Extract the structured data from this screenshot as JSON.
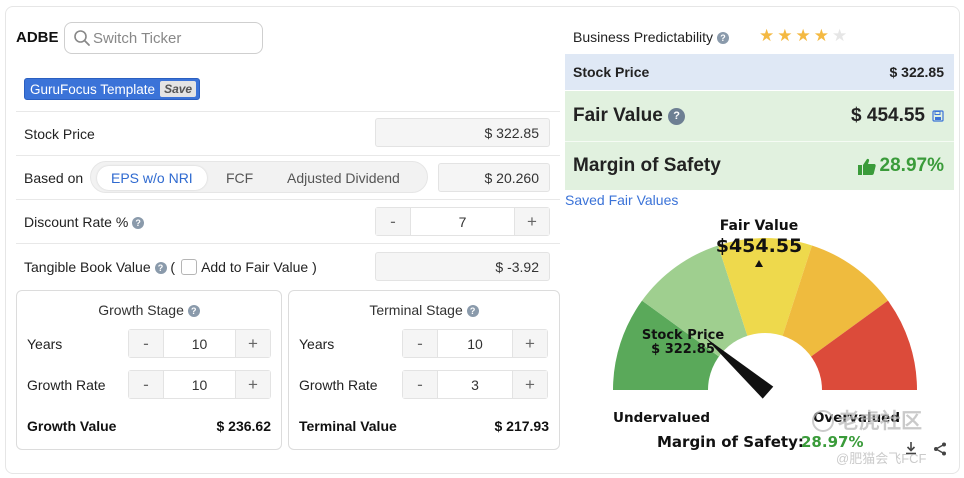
{
  "ticker": "ADBE",
  "search": {
    "placeholder": "Switch Ticker"
  },
  "template": {
    "label": "GuruFocus Template",
    "save_label": "Save"
  },
  "stock_price_row": {
    "label": "Stock Price",
    "value": "$ 322.85"
  },
  "based_on": {
    "label": "Based on",
    "options": [
      "EPS w/o NRI",
      "FCF",
      "Adjusted Dividend"
    ],
    "selected": "EPS w/o NRI",
    "value": "$ 20.260"
  },
  "discount_rate": {
    "label": "Discount Rate %",
    "value": "7"
  },
  "tangible_book": {
    "label": "Tangible Book Value",
    "open_paren": "(",
    "checkbox_label": "Add to Fair Value",
    "close_paren": ")",
    "value": "$ -3.92"
  },
  "growth_stage": {
    "title": "Growth Stage",
    "years_label": "Years",
    "years": "10",
    "rate_label": "Growth Rate",
    "rate": "10",
    "value_label": "Growth Value",
    "value": "$ 236.62"
  },
  "terminal_stage": {
    "title": "Terminal Stage",
    "years_label": "Years",
    "years": "10",
    "rate_label": "Growth Rate",
    "rate": "3",
    "value_label": "Terminal Value",
    "value": "$ 217.93"
  },
  "stepper": {
    "minus": "-",
    "plus": "+"
  },
  "right": {
    "predictability_label": "Business Predictability",
    "predictability_stars": 4,
    "predictability_max": 5,
    "stock_price_label": "Stock Price",
    "stock_price": "$ 322.85",
    "fair_value_label": "Fair Value",
    "fair_value": "$ 454.55",
    "margin_label": "Margin of Safety",
    "margin": "28.97%",
    "saved_link": "Saved Fair Values"
  },
  "gauge": {
    "fair_value_title": "Fair Value",
    "fair_value": "$454.55",
    "stock_price_title": "Stock Price",
    "stock_price": "$ 322.85",
    "undervalued": "Undervalued",
    "overvalued": "Overvalued",
    "margin_label": "Margin of Safety:",
    "margin_value": "28.97%",
    "colors": [
      "#5aa95a",
      "#9fcf8f",
      "#eed94c",
      "#efbb3e",
      "#dc4b3a"
    ]
  },
  "watermark": {
    "line1": "老虎社区",
    "line2": "@肥猫会飞FCF"
  },
  "colors": {
    "accent": "#3b73d8",
    "green": "#3a9b3a",
    "star": "#f4b942"
  }
}
